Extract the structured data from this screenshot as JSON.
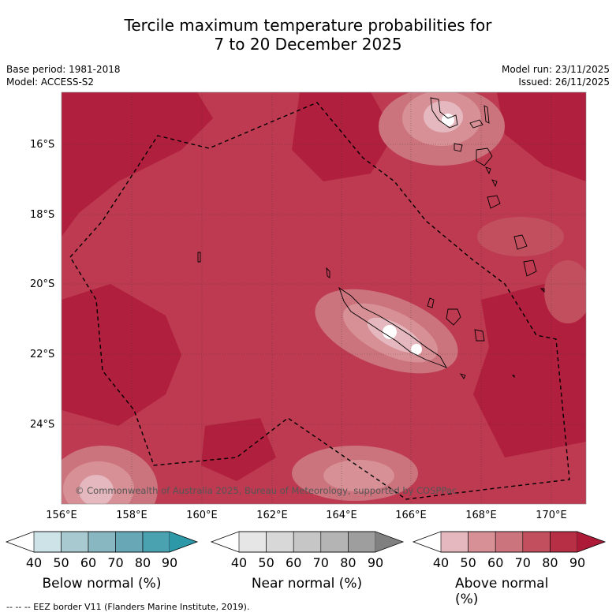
{
  "title": {
    "line1": "Tercile maximum temperature probabilities for",
    "line2": "7 to 20 December 2025"
  },
  "meta": {
    "base_period": "Base period: 1981-2018",
    "model": "Model: ACCESS-S2",
    "model_run": "Model run: 23/11/2025",
    "issued": "Issued: 26/11/2025"
  },
  "map": {
    "lat_labels": [
      "16°S",
      "18°S",
      "20°S",
      "22°S",
      "24°S"
    ],
    "lon_labels": [
      "156°E",
      "158°E",
      "160°E",
      "162°E",
      "164°E",
      "166°E",
      "168°E",
      "170°E"
    ],
    "copyright": "© Commonwealth of Australia 2025, Bureau of Meteorology, supported by COSPPac"
  },
  "colorbars": [
    {
      "title": "Below normal (%)",
      "ticks": [
        "40",
        "50",
        "60",
        "70",
        "80",
        "90"
      ],
      "colors": [
        "#ffffff",
        "#cde3e8",
        "#a9c9d0",
        "#88b6c1",
        "#68a7b6",
        "#4aa1b0",
        "#2d98a8"
      ]
    },
    {
      "title": "Near normal (%)",
      "ticks": [
        "40",
        "50",
        "60",
        "70",
        "80",
        "90"
      ],
      "colors": [
        "#ffffff",
        "#e6e6e6",
        "#d8d8d8",
        "#c6c6c6",
        "#b4b4b4",
        "#9e9e9e",
        "#808080"
      ]
    },
    {
      "title": "Above normal (%)",
      "ticks": [
        "40",
        "50",
        "60",
        "70",
        "80",
        "90"
      ],
      "colors": [
        "#ffffff",
        "#e4b8be",
        "#d79096",
        "#cc747e",
        "#c24f5e",
        "#b72f45",
        "#ad1a38"
      ]
    }
  ],
  "footnote": "--  --  -- EEZ border V11 (Flanders Marine Institute, 2019)."
}
